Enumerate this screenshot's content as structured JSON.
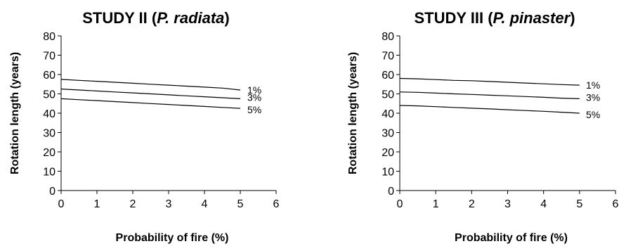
{
  "chart_data": [
    {
      "type": "line",
      "title": {
        "prefix": "STUDY II (",
        "italic": "P. radiata",
        "suffix": ")"
      },
      "xlabel": "Probability of fire (%)",
      "ylabel": "Rotation length (years)",
      "xlim": [
        0,
        6
      ],
      "ylim": [
        0,
        80
      ],
      "xticks": [
        "0",
        "1",
        "2",
        "3",
        "4",
        "5",
        "6"
      ],
      "yticks": [
        "0",
        "10",
        "20",
        "30",
        "40",
        "50",
        "60",
        "70",
        "80"
      ],
      "x": [
        0,
        0.5,
        1,
        1.5,
        2,
        2.5,
        3,
        3.5,
        4,
        4.5,
        5
      ],
      "series": [
        {
          "label": "1%",
          "values": [
            57.5,
            57,
            56.5,
            56,
            55.5,
            55,
            54.5,
            54,
            53.5,
            53,
            52
          ]
        },
        {
          "label": "3%",
          "values": [
            52.5,
            52,
            51.5,
            51,
            50.5,
            50,
            49.5,
            49,
            48.5,
            48,
            47.5
          ]
        },
        {
          "label": "5%",
          "values": [
            47.5,
            47,
            46.5,
            46,
            45.5,
            45,
            44.5,
            44,
            43.5,
            43,
            42.5
          ]
        }
      ]
    },
    {
      "type": "line",
      "title": {
        "prefix": "STUDY III (",
        "italic": "P. pinaster",
        "suffix": ")"
      },
      "xlabel": "Probability of fire (%)",
      "ylabel": "Rotation length (years)",
      "xlim": [
        0,
        6
      ],
      "ylim": [
        0,
        80
      ],
      "xticks": [
        "0",
        "1",
        "2",
        "3",
        "4",
        "5",
        "6"
      ],
      "yticks": [
        "0",
        "10",
        "20",
        "30",
        "40",
        "50",
        "60",
        "70",
        "80"
      ],
      "x": [
        0,
        0.5,
        1,
        1.5,
        2,
        2.5,
        3,
        3.5,
        4,
        4.5,
        5
      ],
      "series": [
        {
          "label": "1%",
          "values": [
            58,
            57.8,
            57.4,
            57,
            56.8,
            56.4,
            56,
            55.6,
            55.2,
            54.8,
            54.5
          ]
        },
        {
          "label": "3%",
          "values": [
            51,
            50.8,
            50.4,
            50,
            49.7,
            49.3,
            49,
            48.6,
            48.2,
            47.8,
            47.5
          ]
        },
        {
          "label": "5%",
          "values": [
            44,
            43.8,
            43.4,
            43,
            42.6,
            42.2,
            41.8,
            41.4,
            41,
            40.5,
            40
          ]
        }
      ]
    }
  ]
}
